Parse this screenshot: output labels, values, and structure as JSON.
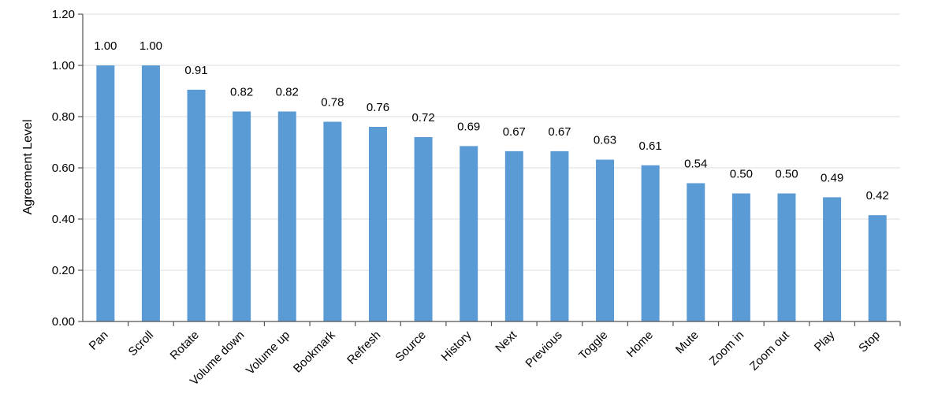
{
  "chart_data": {
    "type": "bar",
    "ylabel": "Agreement Level",
    "xlabel": "",
    "ylim": [
      0,
      1.2
    ],
    "yticks": [
      "0.00",
      "0.20",
      "0.40",
      "0.60",
      "0.80",
      "1.00",
      "1.20"
    ],
    "grid": "horizontal",
    "bar_color": "#5b9bd5",
    "categories": [
      "Pan",
      "Scroll",
      "Rotate",
      "Volume down",
      "Volume up",
      "Bookmark",
      "Refresh",
      "Source",
      "History",
      "Next",
      "Previous",
      "Toggle",
      "Home",
      "Mute",
      "Zoom in",
      "Zoom out",
      "Play",
      "Stop"
    ],
    "values": [
      1.0,
      1.0,
      0.905,
      0.82,
      0.82,
      0.78,
      0.76,
      0.72,
      0.685,
      0.665,
      0.665,
      0.632,
      0.61,
      0.54,
      0.5,
      0.5,
      0.485,
      0.415
    ],
    "data_labels": [
      "1.00",
      "1.00",
      "0.91",
      "0.82",
      "0.82",
      "0.78",
      "0.76",
      "0.72",
      "0.69",
      "0.67",
      "0.67",
      "0.63",
      "0.61",
      "0.54",
      "0.50",
      "0.50",
      "0.49",
      "0.42"
    ]
  }
}
